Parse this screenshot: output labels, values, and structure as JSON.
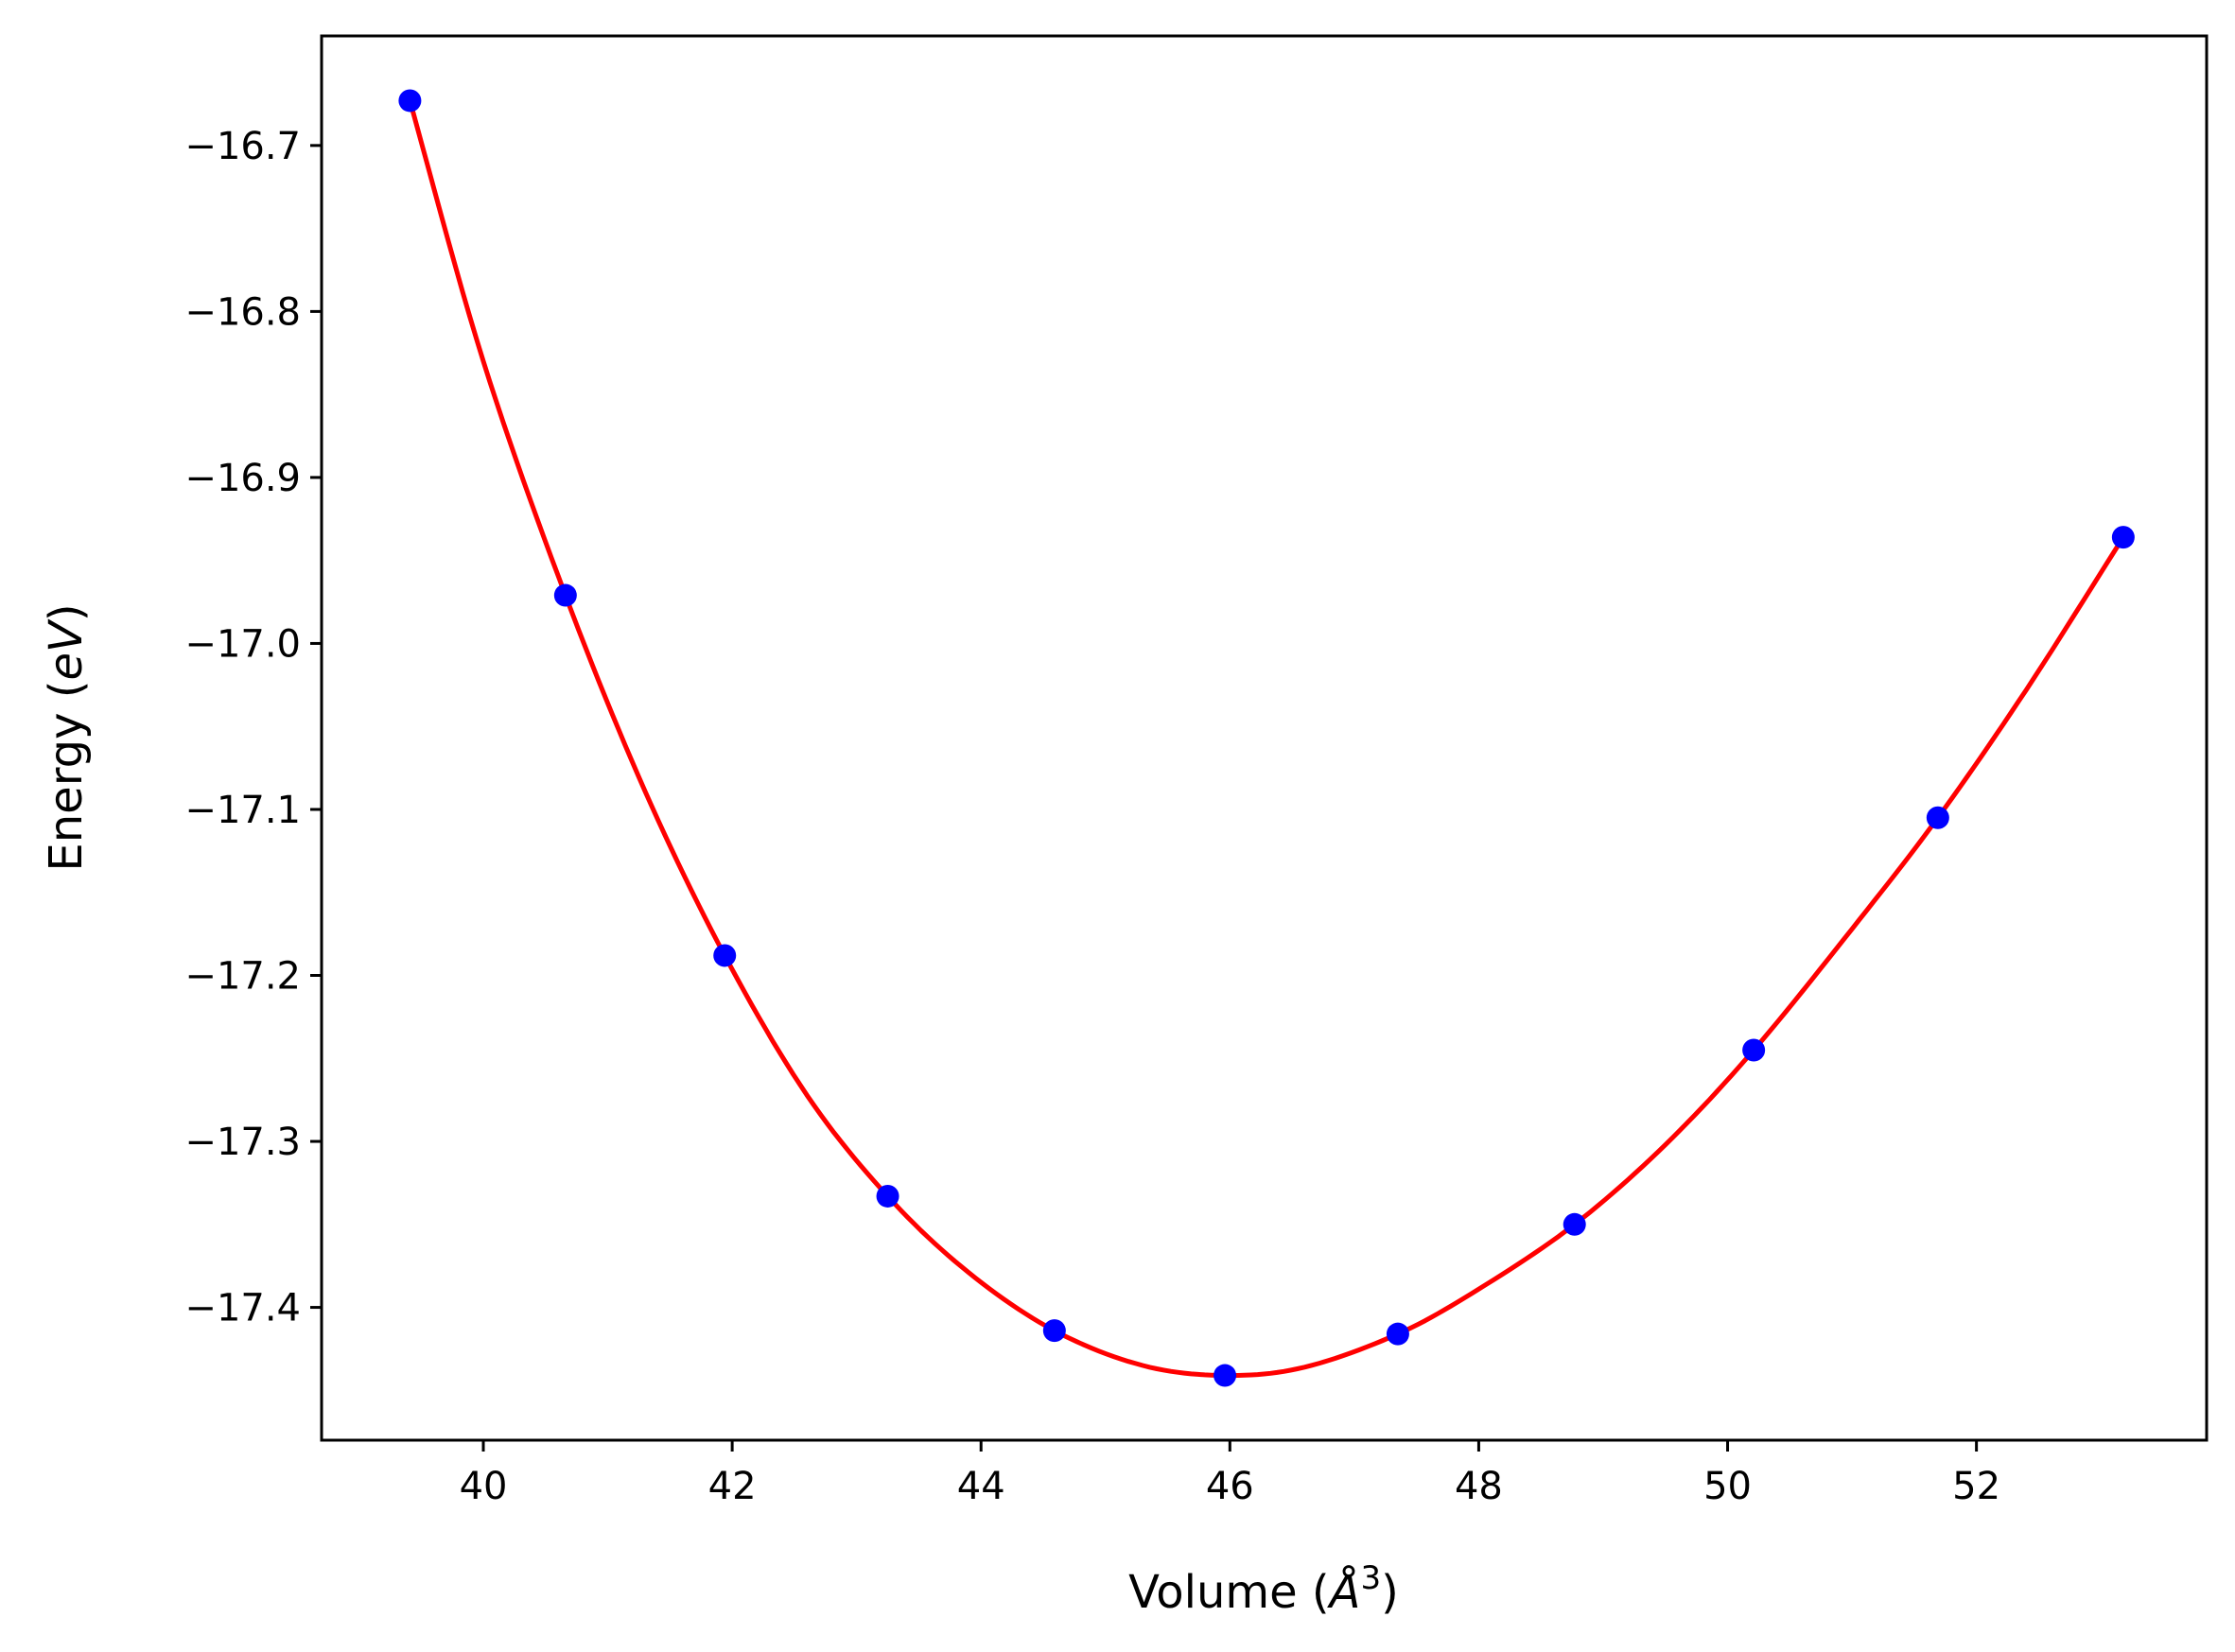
{
  "chart_data": {
    "type": "scatter",
    "title": "",
    "xlabel": "Volume (Å³)",
    "ylabel": "Energy (eV)",
    "xlim": [
      38.7,
      53.85
    ],
    "ylim": [
      -17.48,
      -16.634
    ],
    "grid": false,
    "legend": "none",
    "x_ticks": [
      40,
      42,
      44,
      46,
      48,
      50,
      52
    ],
    "x_tick_labels": [
      "40",
      "42",
      "44",
      "46",
      "48",
      "50",
      "52"
    ],
    "y_ticks": [
      -16.7,
      -16.8,
      -16.9,
      -17.0,
      -17.1,
      -17.2,
      -17.3,
      -17.4
    ],
    "y_tick_labels": [
      "−16.7",
      "−16.8",
      "−16.9",
      "−17.0",
      "−17.1",
      "−17.2",
      "−17.3",
      "−17.4"
    ],
    "series": [
      {
        "kind": "points",
        "color": "#0000ff",
        "x": [
          39.41,
          40.66,
          41.94,
          43.25,
          44.59,
          45.96,
          47.35,
          48.77,
          50.21,
          51.69,
          53.18
        ],
        "y": [
          -16.673,
          -16.971,
          -17.188,
          -17.333,
          -17.414,
          -17.441,
          -17.416,
          -17.35,
          -17.245,
          -17.105,
          -16.936
        ]
      },
      {
        "kind": "fit-line",
        "color": "#ff0000",
        "x": [
          39.41,
          40.0,
          40.66,
          41.3,
          41.94,
          42.6,
          43.25,
          43.9,
          44.59,
          45.3,
          45.96,
          46.6,
          47.35,
          48.0,
          48.77,
          49.5,
          50.21,
          51.0,
          51.69,
          52.4,
          53.18
        ],
        "y": [
          -16.673,
          -16.83,
          -16.971,
          -17.089,
          -17.188,
          -17.272,
          -17.333,
          -17.379,
          -17.414,
          -17.435,
          -17.441,
          -17.436,
          -17.416,
          -17.389,
          -17.35,
          -17.302,
          -17.245,
          -17.172,
          -17.105,
          -17.028,
          -16.936
        ]
      }
    ]
  }
}
